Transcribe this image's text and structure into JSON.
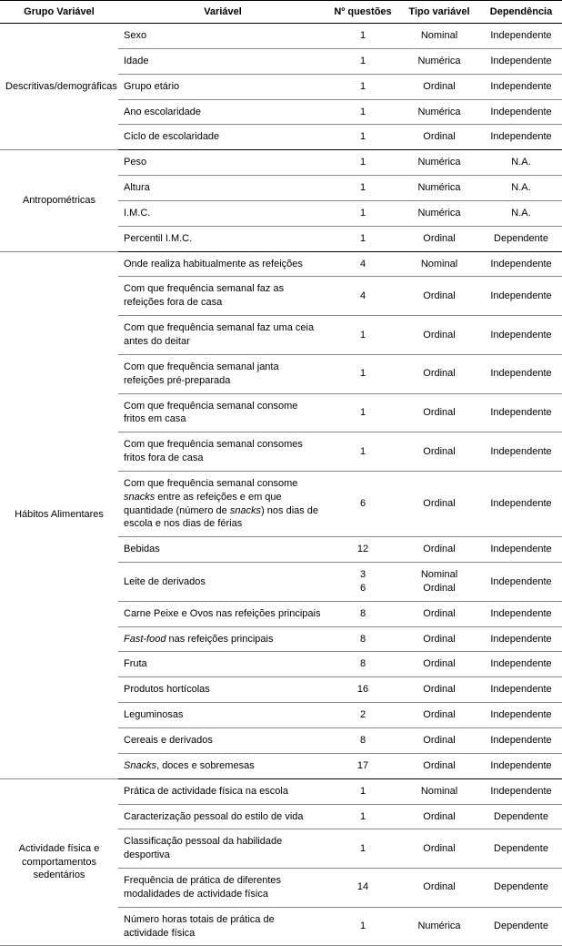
{
  "headers": {
    "group": "Grupo Variável",
    "var": "Variável",
    "n": "Nº questões",
    "type": "Tipo variável",
    "dep": "Dependência"
  },
  "groups": [
    {
      "name": "Descritivas/demográficas",
      "rows": [
        {
          "var": "Sexo",
          "n": "1",
          "type": "Nominal",
          "dep": "Independente"
        },
        {
          "var": "Idade",
          "n": "1",
          "type": "Numérica",
          "dep": "Independente"
        },
        {
          "var": "Grupo etário",
          "n": "1",
          "type": "Ordinal",
          "dep": "Independente"
        },
        {
          "var": "Ano escolaridade",
          "n": "1",
          "type": "Numérica",
          "dep": "Independente"
        },
        {
          "var": "Ciclo de escolaridade",
          "n": "1",
          "type": "Ordinal",
          "dep": "Independente"
        }
      ]
    },
    {
      "name": "Antropométricas",
      "rows": [
        {
          "var": "Peso",
          "n": "1",
          "type": "Numérica",
          "dep": "N.A."
        },
        {
          "var": "Altura",
          "n": "1",
          "type": "Numérica",
          "dep": "N.A."
        },
        {
          "var": "I.M.C.",
          "n": "1",
          "type": "Numérica",
          "dep": "N.A."
        },
        {
          "var": "Percentil I.M.C.",
          "n": "1",
          "type": "Ordinal",
          "dep": "Dependente"
        }
      ]
    },
    {
      "name": "Hábitos Alimentares",
      "rows": [
        {
          "var": "Onde realiza habitualmente as refeições",
          "n": "4",
          "type": "Nominal",
          "dep": "Independente"
        },
        {
          "var": "Com que frequência semanal faz as refeições fora de casa",
          "n": "4",
          "type": "Ordinal",
          "dep": "Independente"
        },
        {
          "var": "Com que frequência semanal faz uma ceia antes do deitar",
          "n": "1",
          "type": "Ordinal",
          "dep": "Independente"
        },
        {
          "var": "Com que frequência semanal janta refeições pré-preparada",
          "n": "1",
          "type": "Ordinal",
          "dep": "Independente"
        },
        {
          "var": "Com que frequência semanal consome fritos em casa",
          "n": "1",
          "type": "Ordinal",
          "dep": "Independente"
        },
        {
          "var": "Com que frequência semanal consomes fritos fora de casa",
          "n": "1",
          "type": "Ordinal",
          "dep": "Independente"
        },
        {
          "var_html": "Com que frequência semanal consome <span class=\"italic\">snacks</span> entre as refeições e em que quantidade (número de <span class=\"italic\">snacks</span>) nos dias de escola e nos dias de férias",
          "n": "6",
          "type": "Ordinal",
          "dep": "Independente"
        },
        {
          "var": "Bebidas",
          "n": "12",
          "type": "Ordinal",
          "dep": "Independente"
        },
        {
          "var": "Leite de derivados",
          "n": "3\n6",
          "type": "Nominal\nOrdinal",
          "dep": "Independente"
        },
        {
          "var": "Carne Peixe e Ovos nas refeições principais",
          "n": "8",
          "type": "Ordinal",
          "dep": "Independente"
        },
        {
          "var_html": "<span class=\"italic\">Fast-food</span> nas refeições principais",
          "n": "8",
          "type": "Ordinal",
          "dep": "Independente"
        },
        {
          "var": "Fruta",
          "n": "8",
          "type": "Ordinal",
          "dep": "Independente"
        },
        {
          "var": "Produtos hortícolas",
          "n": "16",
          "type": "Ordinal",
          "dep": "Independente"
        },
        {
          "var": "Leguminosas",
          "n": "2",
          "type": "Ordinal",
          "dep": "Independente"
        },
        {
          "var": "Cereais e derivados",
          "n": "8",
          "type": "Ordinal",
          "dep": "Independente"
        },
        {
          "var_html": "<span class=\"italic\">Snacks</span>, doces e sobremesas",
          "n": "17",
          "type": "Ordinal",
          "dep": "Independente"
        }
      ]
    },
    {
      "name": "Actividade física e comportamentos sedentários",
      "rows": [
        {
          "var": "Prática de actividade física na escola",
          "n": "1",
          "type": "Nominal",
          "dep": "Independente"
        },
        {
          "var": "Caracterização pessoal do estilo de vida",
          "n": "1",
          "type": "Ordinal",
          "dep": "Dependente"
        },
        {
          "var": "Classificação pessoal da habilidade desportiva",
          "n": "1",
          "type": "Ordinal",
          "dep": "Dependente"
        },
        {
          "var": "Frequência de prática de diferentes modalidades de actividade física",
          "n": "14",
          "type": "Ordinal",
          "dep": "Dependente"
        },
        {
          "var": "Número horas totais de prática de actividade física",
          "n": "1",
          "type": "Numérica",
          "dep": "Dependente"
        }
      ]
    }
  ]
}
